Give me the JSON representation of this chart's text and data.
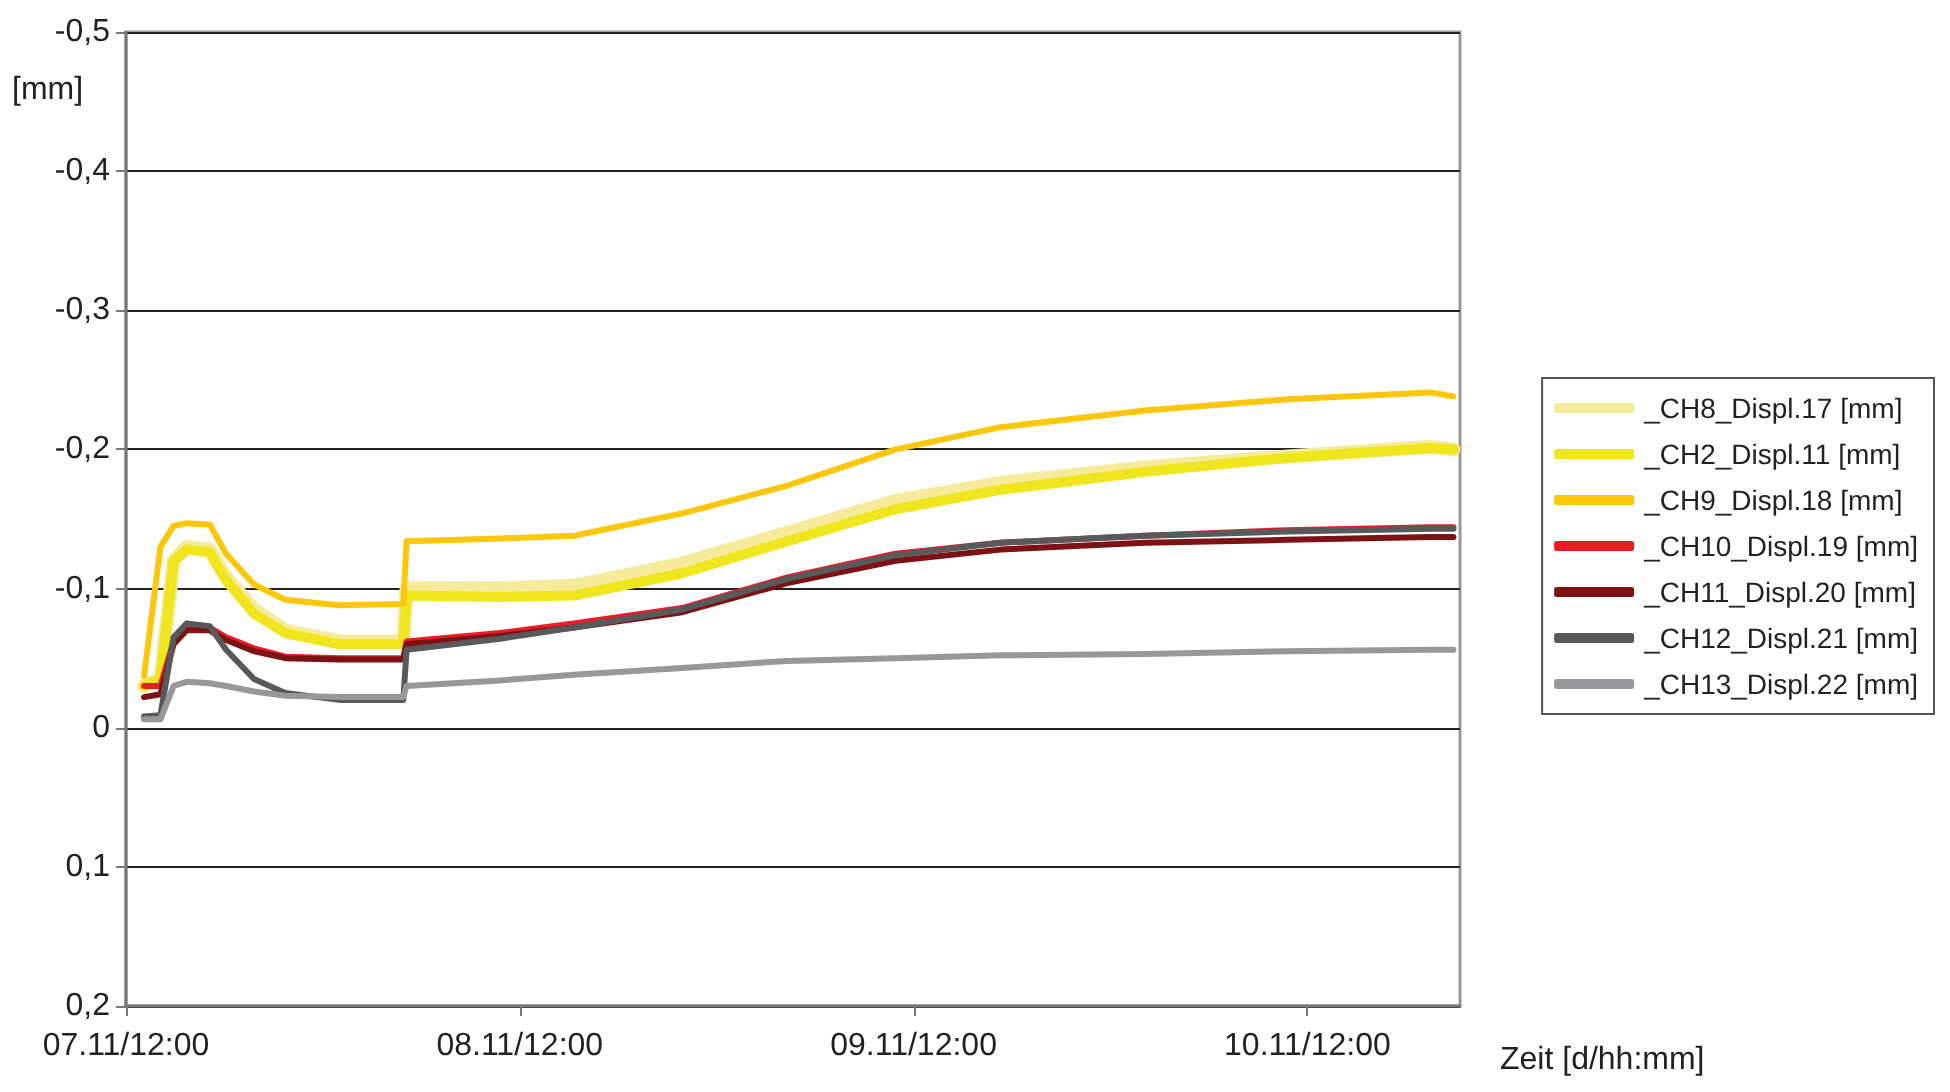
{
  "chart_data": {
    "type": "line",
    "ylabel": "[mm]",
    "xlabel": "Zeit [d/hh:mm]",
    "x": [
      "--11-07T13:06",
      "--11-07T14:06",
      "--11-07T14:54",
      "--11-07T15:42",
      "--11-07T17:06",
      "--11-07T18:06",
      "--11-07T19:48",
      "--11-07T21:42",
      "--11-08T01:00",
      "--11-08T04:54",
      "--11-08T05:06",
      "--11-08T10:48",
      "--11-08T15:18",
      "--11-08T21:54",
      "--11-09T04:18",
      "--11-09T10:54",
      "--11-09T17:18",
      "--11-10T02:06",
      "--11-10T10:48",
      "--11-10T19:30",
      "--11-10T20:54"
    ],
    "series": [
      {
        "name": "_CH8_Displ.17 [mm]",
        "color": "#f5eb9a",
        "values": [
          -0.03,
          -0.035,
          -0.12,
          -0.13,
          -0.128,
          -0.108,
          -0.085,
          -0.07,
          -0.062,
          -0.062,
          -0.1,
          -0.1,
          -0.102,
          -0.118,
          -0.14,
          -0.163,
          -0.176,
          -0.187,
          -0.195,
          -0.202,
          -0.2
        ]
      },
      {
        "name": "_CH2_Displ.11 [mm]",
        "color": "#f0e61e",
        "values": [
          -0.03,
          -0.035,
          -0.12,
          -0.128,
          -0.126,
          -0.106,
          -0.082,
          -0.068,
          -0.06,
          -0.06,
          -0.095,
          -0.094,
          -0.095,
          -0.111,
          -0.134,
          -0.157,
          -0.171,
          -0.184,
          -0.194,
          -0.201,
          -0.2
        ]
      },
      {
        "name": "_CH9_Displ.18 [mm]",
        "color": "#fcc60a",
        "values": [
          -0.037,
          -0.13,
          -0.145,
          -0.147,
          -0.146,
          -0.125,
          -0.103,
          -0.092,
          -0.088,
          -0.089,
          -0.134,
          -0.136,
          -0.138,
          -0.154,
          -0.174,
          -0.2,
          -0.216,
          -0.228,
          -0.236,
          -0.241,
          -0.238
        ]
      },
      {
        "name": "_CH10_Displ.19 [mm]",
        "color": "#ec1c24",
        "values": [
          -0.03,
          -0.03,
          -0.062,
          -0.072,
          -0.072,
          -0.065,
          -0.057,
          -0.051,
          -0.05,
          -0.05,
          -0.062,
          -0.068,
          -0.075,
          -0.086,
          -0.108,
          -0.125,
          -0.133,
          -0.138,
          -0.142,
          -0.144,
          -0.144
        ]
      },
      {
        "name": "_CH11_Displ.20 [mm]",
        "color": "#7d1214",
        "values": [
          -0.022,
          -0.024,
          -0.06,
          -0.07,
          -0.07,
          -0.063,
          -0.055,
          -0.05,
          -0.049,
          -0.049,
          -0.06,
          -0.066,
          -0.072,
          -0.083,
          -0.104,
          -0.12,
          -0.128,
          -0.133,
          -0.135,
          -0.137,
          -0.137
        ]
      },
      {
        "name": "_CH12_Displ.21 [mm]",
        "color": "#58595b",
        "values": [
          -0.008,
          -0.009,
          -0.065,
          -0.075,
          -0.073,
          -0.056,
          -0.035,
          -0.025,
          -0.02,
          -0.02,
          -0.056,
          -0.064,
          -0.072,
          -0.085,
          -0.107,
          -0.124,
          -0.133,
          -0.138,
          -0.141,
          -0.143,
          -0.143
        ]
      },
      {
        "name": "_CH13_Displ.22 [mm]",
        "color": "#98989a",
        "values": [
          -0.006,
          -0.006,
          -0.03,
          -0.033,
          -0.032,
          -0.03,
          -0.026,
          -0.023,
          -0.022,
          -0.022,
          -0.03,
          -0.034,
          -0.038,
          -0.043,
          -0.048,
          -0.05,
          -0.052,
          -0.053,
          -0.055,
          -0.056,
          -0.056
        ]
      }
    ],
    "ylim": [
      0.2,
      -0.5
    ],
    "yticks": [
      {
        "value": -0.5,
        "label": "-0,5"
      },
      {
        "value": -0.4,
        "label": "-0,4"
      },
      {
        "value": -0.3,
        "label": "-0,3"
      },
      {
        "value": -0.2,
        "label": "-0,2"
      },
      {
        "value": -0.1,
        "label": "-0,1"
      },
      0,
      {
        "value": 0.1,
        "label": "0,1"
      },
      {
        "value": 0.2,
        "label": "0,2"
      }
    ],
    "xlim": [
      "--11-07T12:00",
      "--11-10T21:18"
    ],
    "xticks": [
      {
        "value": "--11-07T12:00",
        "label": "07.11/12:00"
      },
      {
        "value": "--11-08T12:00",
        "label": "08.11/12:00"
      },
      {
        "value": "--11-09T12:00",
        "label": "09.11/12:00"
      },
      {
        "value": "--11-10T12:00",
        "label": "10.11/12:00"
      }
    ],
    "grid": "y",
    "legend": "right",
    "marker": "none",
    "line_style": "solid"
  }
}
